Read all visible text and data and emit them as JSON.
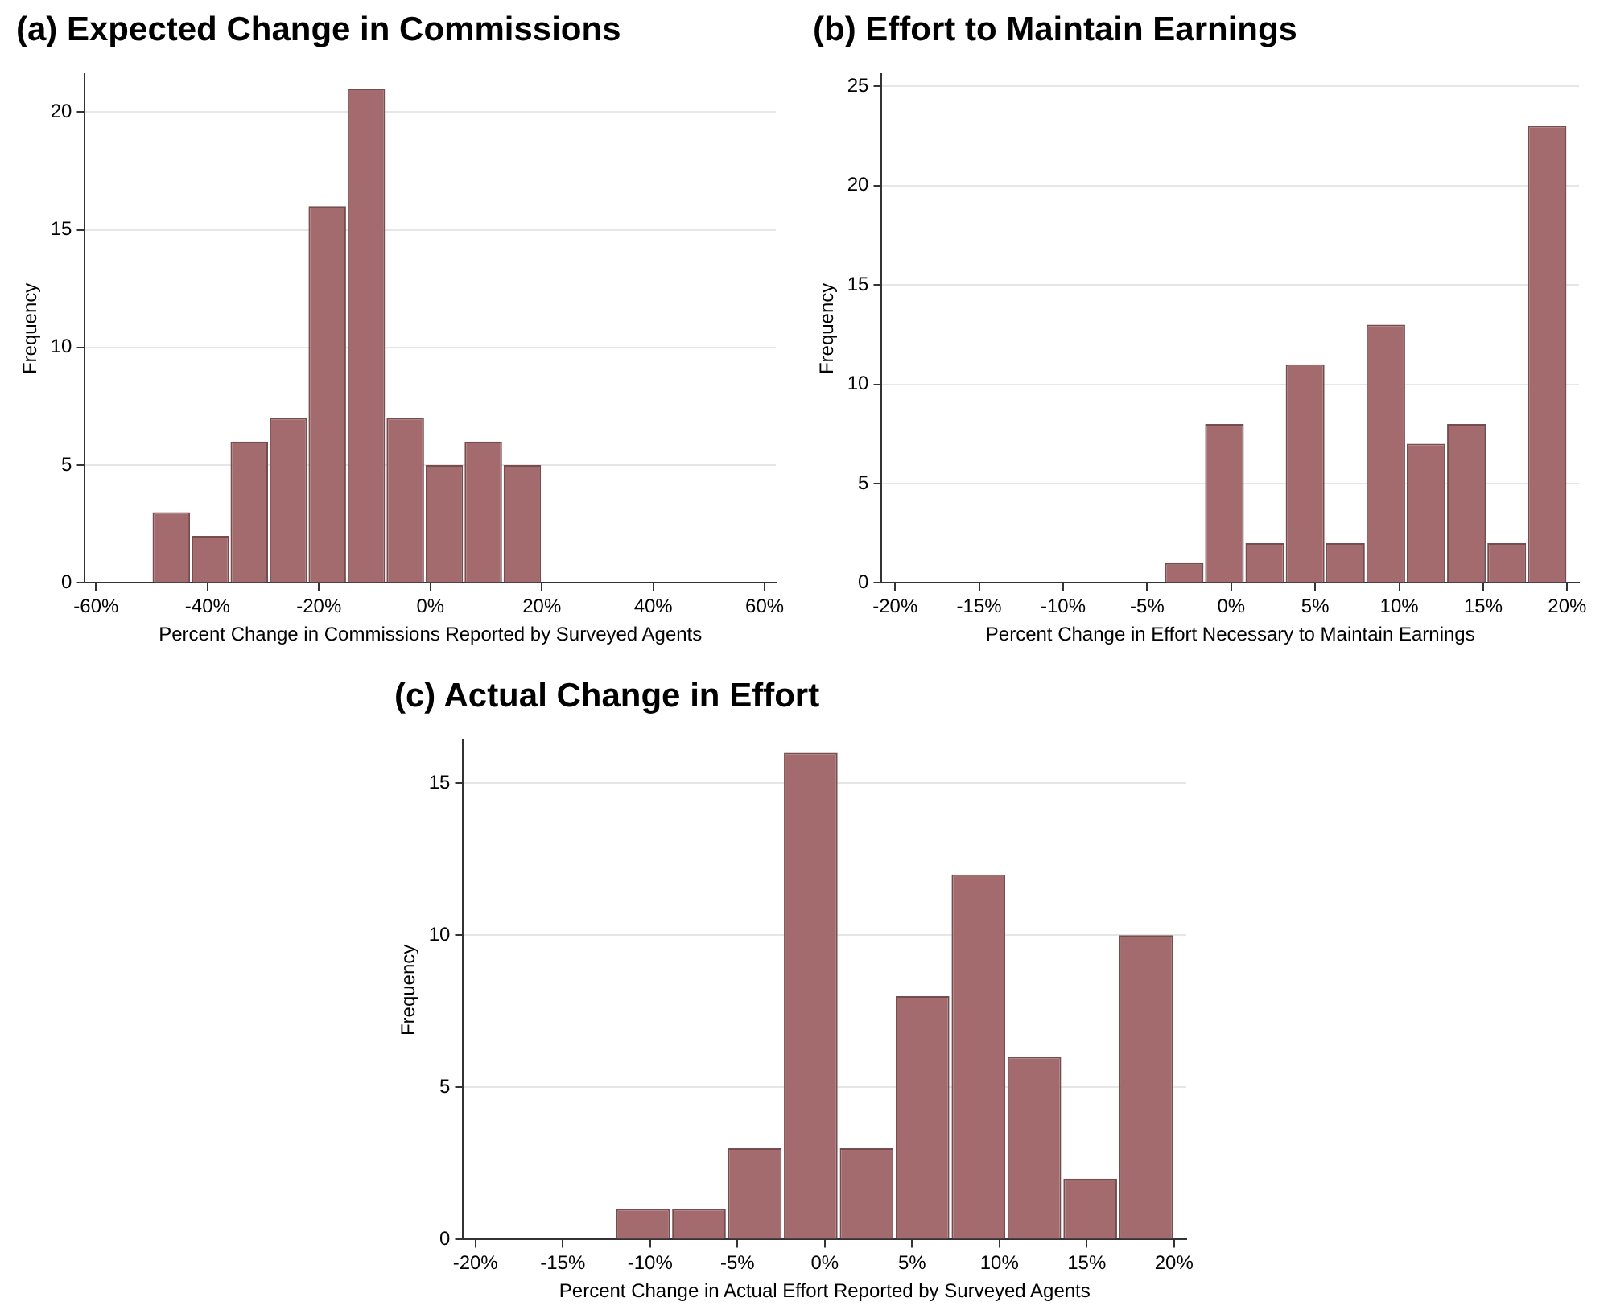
{
  "chart_data": [
    {
      "type": "histogram",
      "title": "(a) Expected Change in Commissions",
      "xlabel": "Percent Change in Commissions Reported by Surveyed Agents",
      "ylabel": "Frequency",
      "color": "#a36b6d",
      "bins": [
        -50,
        -43,
        -36,
        -29,
        -22,
        -15,
        -8,
        -1,
        6,
        13,
        20
      ],
      "values": [
        3,
        2,
        6,
        7,
        16,
        21,
        7,
        5,
        6,
        5
      ],
      "xlim": [
        -62,
        62
      ],
      "xticks": [
        {
          "value": -60,
          "label": "-60%"
        },
        {
          "value": -40,
          "label": "-40%"
        },
        {
          "value": -20,
          "label": "-20%"
        },
        {
          "value": 0,
          "label": "0%"
        },
        {
          "value": 20,
          "label": "20%"
        },
        {
          "value": 40,
          "label": "40%"
        },
        {
          "value": 60,
          "label": "60%"
        }
      ],
      "ylim": [
        0,
        21.6
      ],
      "yticks": [
        0,
        5,
        10,
        15,
        20
      ],
      "grid": "y"
    },
    {
      "type": "histogram",
      "title": "(b) Effort to Maintain Earnings",
      "xlabel": "Percent Change in Effort Necessary to Maintain Earnings",
      "ylabel": "Frequency",
      "color": "#a36b6d",
      "bins": [
        -4,
        -1.6,
        0.8,
        3.2,
        5.6,
        8,
        10.4,
        12.8,
        15.2,
        17.6,
        20
      ],
      "values": [
        1,
        8,
        2,
        11,
        2,
        13,
        7,
        8,
        2,
        23
      ],
      "xlim": [
        -20.8,
        20.7
      ],
      "xticks": [
        {
          "value": -20,
          "label": "-20%"
        },
        {
          "value": -15,
          "label": "-15%"
        },
        {
          "value": -10,
          "label": "-10%"
        },
        {
          "value": -5,
          "label": "-5%"
        },
        {
          "value": 0,
          "label": "0%"
        },
        {
          "value": 5,
          "label": "5%"
        },
        {
          "value": 10,
          "label": "10%"
        },
        {
          "value": 15,
          "label": "15%"
        },
        {
          "value": 20,
          "label": "20%"
        }
      ],
      "ylim": [
        0,
        25.6
      ],
      "yticks": [
        0,
        5,
        10,
        15,
        20,
        25
      ],
      "grid": "y"
    },
    {
      "type": "histogram",
      "title": "(c) Actual Change in Effort",
      "xlabel": "Percent Change in Actual Effort Reported by Surveyed Agents",
      "ylabel": "Frequency",
      "color": "#a36b6d",
      "bins": [
        -12,
        -8.8,
        -5.6,
        -2.4,
        0.8,
        4,
        7.2,
        10.4,
        13.6,
        16.8,
        20
      ],
      "values": [
        1,
        1,
        3,
        16,
        3,
        8,
        12,
        6,
        2,
        10
      ],
      "xlim": [
        -20.7,
        20.7
      ],
      "xticks": [
        {
          "value": -20,
          "label": "-20%"
        },
        {
          "value": -15,
          "label": "-15%"
        },
        {
          "value": -10,
          "label": "-10%"
        },
        {
          "value": -5,
          "label": "-5%"
        },
        {
          "value": 0,
          "label": "0%"
        },
        {
          "value": 5,
          "label": "5%"
        },
        {
          "value": 10,
          "label": "10%"
        },
        {
          "value": 15,
          "label": "15%"
        },
        {
          "value": 20,
          "label": "20%"
        }
      ],
      "ylim": [
        0,
        16.4
      ],
      "yticks": [
        0,
        5,
        10,
        15
      ],
      "grid": "y"
    }
  ]
}
